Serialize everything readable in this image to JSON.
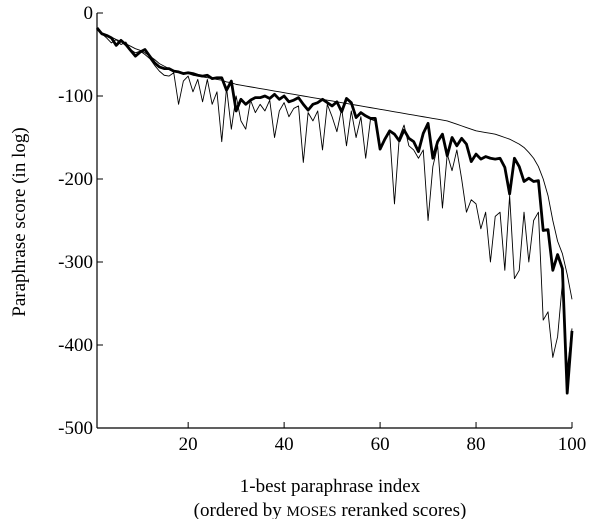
{
  "chart_data": {
    "type": "line",
    "xlabel": "1-best paraphrase index",
    "xlabel_sub": {
      "prefix": "(ordered by ",
      "smallcaps": "MOSES",
      "suffix": " reranked scores)"
    },
    "ylabel": "Paraphrase score (in log)",
    "xlim": [
      1,
      100
    ],
    "ylim": [
      -500,
      0
    ],
    "xticks": [
      20,
      40,
      60,
      80,
      100
    ],
    "yticks": [
      0,
      -100,
      -200,
      -300,
      -400,
      -500
    ],
    "grid": false,
    "legend": "none",
    "series": [
      {
        "style": "thick",
        "color": "#000000",
        "x": [
          1,
          2,
          3,
          4,
          5,
          6,
          7,
          8,
          9,
          10,
          11,
          12,
          13,
          14,
          15,
          16,
          17,
          18,
          19,
          20,
          21,
          22,
          23,
          24,
          25,
          26,
          27,
          28,
          29,
          30,
          31,
          32,
          33,
          34,
          35,
          36,
          37,
          38,
          39,
          40,
          41,
          42,
          43,
          44,
          45,
          46,
          47,
          48,
          49,
          50,
          51,
          52,
          53,
          54,
          55,
          56,
          57,
          58,
          59,
          60,
          61,
          62,
          63,
          64,
          65,
          66,
          67,
          68,
          69,
          70,
          71,
          72,
          73,
          74,
          75,
          76,
          77,
          78,
          79,
          80,
          81,
          82,
          83,
          84,
          85,
          86,
          87,
          88,
          89,
          90,
          91,
          92,
          93,
          94,
          95,
          96,
          97,
          98,
          99,
          100
        ],
        "y": [
          -18,
          -25,
          -27,
          -30,
          -39,
          -33,
          -38,
          -45,
          -52,
          -47,
          -44,
          -52,
          -60,
          -65,
          -67,
          -67,
          -70,
          -71,
          -73,
          -72,
          -73,
          -75,
          -76,
          -75,
          -79,
          -78,
          -78,
          -93,
          -82,
          -118,
          -104,
          -110,
          -105,
          -102,
          -102,
          -100,
          -103,
          -98,
          -104,
          -100,
          -107,
          -105,
          -102,
          -110,
          -117,
          -110,
          -108,
          -104,
          -108,
          -112,
          -107,
          -119,
          -103,
          -108,
          -126,
          -120,
          -124,
          -127,
          -127,
          -164,
          -152,
          -142,
          -146,
          -154,
          -141,
          -151,
          -155,
          -167,
          -145,
          -133,
          -175,
          -155,
          -146,
          -172,
          -150,
          -160,
          -151,
          -158,
          -179,
          -170,
          -176,
          -173,
          -175,
          -176,
          -175,
          -186,
          -218,
          -175,
          -185,
          -203,
          -199,
          -203,
          -202,
          -262,
          -261,
          -310,
          -291,
          -308,
          -458,
          -383
        ]
      },
      {
        "style": "thin",
        "color": "#000000",
        "x": [
          1,
          2,
          3,
          4,
          5,
          6,
          7,
          8,
          9,
          10,
          11,
          12,
          13,
          14,
          15,
          16,
          17,
          18,
          19,
          20,
          21,
          22,
          23,
          24,
          25,
          26,
          27,
          28,
          29,
          30,
          31,
          32,
          33,
          34,
          35,
          36,
          37,
          38,
          39,
          40,
          41,
          42,
          43,
          44,
          45,
          46,
          47,
          48,
          49,
          50,
          51,
          52,
          53,
          54,
          55,
          56,
          57,
          58,
          59,
          60,
          61,
          62,
          63,
          64,
          65,
          66,
          67,
          68,
          69,
          70,
          71,
          72,
          73,
          74,
          75,
          76,
          77,
          78,
          79,
          80,
          81,
          82,
          83,
          84,
          85,
          86,
          87,
          88,
          89,
          90,
          91,
          92,
          93,
          94,
          95,
          96,
          97,
          98,
          99,
          100
        ],
        "y": [
          -18,
          -24,
          -27,
          -29,
          -32,
          -34,
          -37,
          -40,
          -43,
          -45,
          -48,
          -52,
          -56,
          -61,
          -64,
          -67,
          -69,
          -71,
          -72,
          -73,
          -75,
          -76,
          -77,
          -78,
          -79,
          -80,
          -81,
          -83,
          -84,
          -86,
          -87,
          -88,
          -89,
          -90,
          -91,
          -92,
          -93,
          -94,
          -95,
          -96,
          -97,
          -98,
          -99,
          -100,
          -101,
          -102,
          -103,
          -104,
          -105,
          -106,
          -107,
          -108,
          -109,
          -110,
          -111,
          -112,
          -113,
          -114,
          -115,
          -116,
          -117,
          -118,
          -119,
          -120,
          -121,
          -122,
          -123,
          -124,
          -125,
          -126,
          -127,
          -128,
          -129,
          -130,
          -132,
          -134,
          -136,
          -138,
          -140,
          -142,
          -143,
          -144,
          -145,
          -146,
          -148,
          -150,
          -152,
          -155,
          -158,
          -162,
          -168,
          -175,
          -185,
          -200,
          -220,
          -250,
          -275,
          -290,
          -315,
          -345
        ]
      },
      {
        "style": "thin",
        "color": "#000000",
        "x": [
          1,
          2,
          3,
          4,
          5,
          6,
          7,
          8,
          9,
          10,
          11,
          12,
          13,
          14,
          15,
          16,
          17,
          18,
          19,
          20,
          21,
          22,
          23,
          24,
          25,
          26,
          27,
          28,
          29,
          30,
          31,
          32,
          33,
          34,
          35,
          36,
          37,
          38,
          39,
          40,
          41,
          42,
          43,
          44,
          45,
          46,
          47,
          48,
          49,
          50,
          51,
          52,
          53,
          54,
          55,
          56,
          57,
          58,
          59,
          60,
          61,
          62,
          63,
          64,
          65,
          66,
          67,
          68,
          69,
          70,
          71,
          72,
          73,
          74,
          75,
          76,
          77,
          78,
          79,
          80,
          81,
          82,
          83,
          84,
          85,
          86,
          87,
          88,
          89,
          90,
          91,
          92,
          93,
          94,
          95,
          96,
          97,
          98,
          99,
          100
        ],
        "y": [
          -18,
          -25,
          -30,
          -36,
          -32,
          -38,
          -35,
          -44,
          -48,
          -46,
          -50,
          -55,
          -63,
          -70,
          -75,
          -76,
          -72,
          -110,
          -82,
          -76,
          -95,
          -80,
          -107,
          -80,
          -110,
          -95,
          -155,
          -90,
          -140,
          -100,
          -130,
          -140,
          -105,
          -120,
          -110,
          -118,
          -105,
          -150,
          -118,
          -108,
          -125,
          -115,
          -112,
          -180,
          -120,
          -130,
          -118,
          -165,
          -110,
          -125,
          -143,
          -115,
          -160,
          -118,
          -150,
          -125,
          -175,
          -128,
          -130,
          -165,
          -150,
          -145,
          -230,
          -150,
          -135,
          -160,
          -165,
          -175,
          -165,
          -250,
          -185,
          -160,
          -235,
          -170,
          -190,
          -165,
          -200,
          -240,
          -225,
          -230,
          -260,
          -240,
          -300,
          -245,
          -240,
          -310,
          -220,
          -320,
          -310,
          -240,
          -300,
          -250,
          -240,
          -370,
          -360,
          -415,
          -390,
          -325,
          -430,
          -380
        ]
      }
    ]
  }
}
